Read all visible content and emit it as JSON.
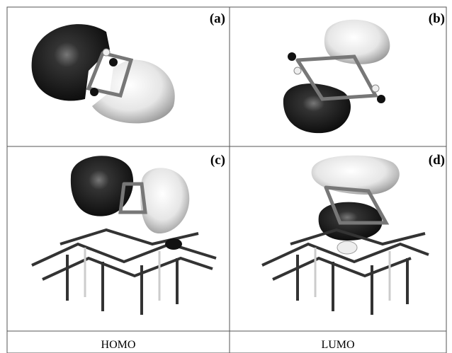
{
  "panels": [
    {
      "label": "(a)"
    },
    {
      "label": "(b)"
    },
    {
      "label": "(c)"
    },
    {
      "label": "(d)"
    }
  ],
  "columns": [
    "HOMO",
    "LUMO"
  ]
}
